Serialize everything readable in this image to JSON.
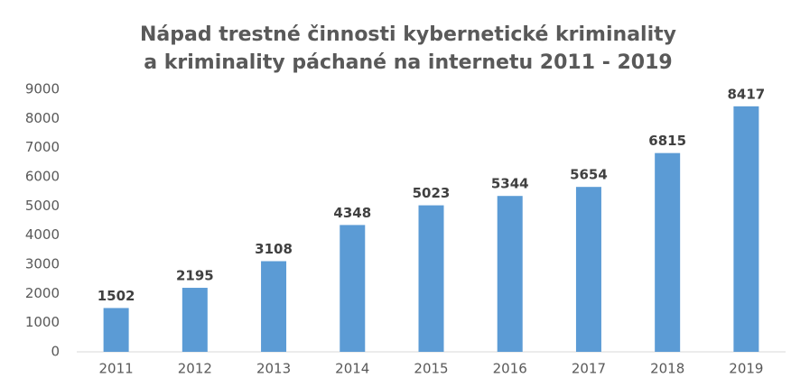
{
  "chart_data": {
    "type": "bar",
    "title": [
      "Nápad trestné činnosti kybernetické kriminality",
      "a kriminality páchané na internetu 2011 - 2019"
    ],
    "categories": [
      "2011",
      "2012",
      "2013",
      "2014",
      "2015",
      "2016",
      "2017",
      "2018",
      "2019"
    ],
    "values": [
      1502,
      2195,
      3108,
      4348,
      5023,
      5344,
      5654,
      6815,
      8417
    ],
    "color": "#5b9bd5",
    "ylim": [
      0,
      9000
    ],
    "yticks": [
      0,
      1000,
      2000,
      3000,
      4000,
      5000,
      6000,
      7000,
      8000,
      9000
    ],
    "grid": false
  }
}
